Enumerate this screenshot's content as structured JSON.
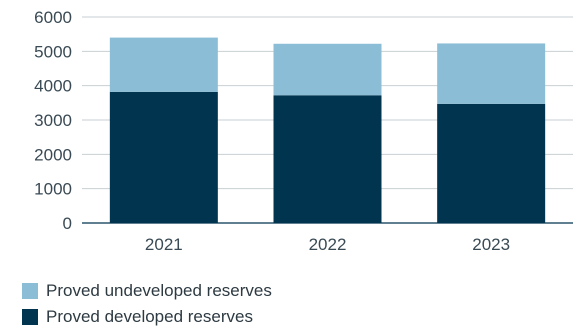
{
  "chart_data": {
    "type": "bar",
    "stacked": true,
    "categories": [
      "2021",
      "2022",
      "2023"
    ],
    "series": [
      {
        "name": "Proved developed reserves",
        "values": [
          3820,
          3720,
          3470
        ],
        "color": "#00344f"
      },
      {
        "name": "Proved undeveloped reserves",
        "values": [
          1580,
          1500,
          1760
        ],
        "color": "#8bbdd6"
      }
    ],
    "ylim": [
      0,
      6000
    ],
    "yticks": [
      0,
      1000,
      2000,
      3000,
      4000,
      5000,
      6000
    ],
    "grid": true,
    "legend_position": "bottom-left",
    "title": "",
    "xlabel": "",
    "ylabel": ""
  },
  "legend": {
    "items": [
      {
        "label": "Proved undeveloped reserves",
        "color": "#8bbdd6"
      },
      {
        "label": "Proved developed reserves",
        "color": "#00344f"
      }
    ]
  }
}
